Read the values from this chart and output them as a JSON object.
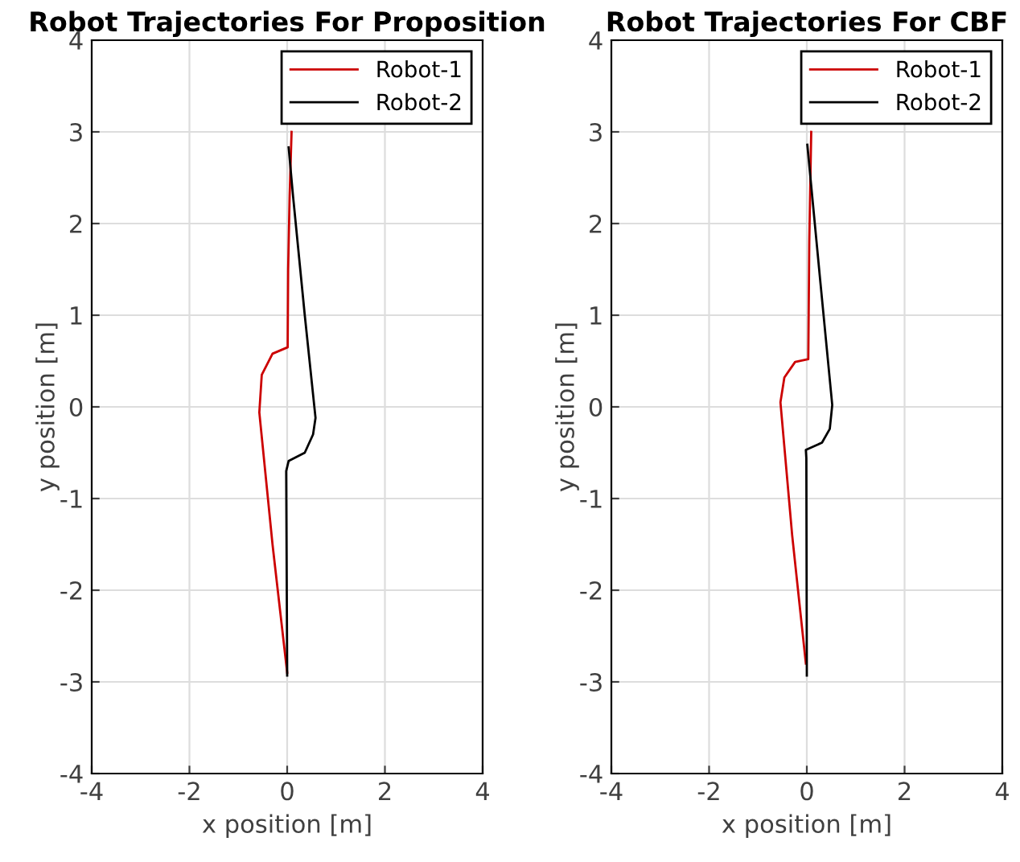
{
  "chart_data": [
    {
      "type": "line",
      "title": "Robot Trajectories For Proposition",
      "xlabel": "x position [m]",
      "ylabel": "y position [m]",
      "xlim": [
        -4,
        4
      ],
      "ylim": [
        -4,
        4
      ],
      "xticks": [
        -4,
        -2,
        0,
        2,
        4
      ],
      "yticks": [
        -4,
        -3,
        -2,
        -1,
        0,
        1,
        2,
        3,
        4
      ],
      "grid": true,
      "legend": "top right",
      "series": [
        {
          "name": "Robot-1",
          "color": "#cc0000",
          "x": [
            0.0,
            -0.3,
            -0.57,
            -0.52,
            -0.3,
            0.01,
            0.02,
            0.05,
            0.09
          ],
          "values": [
            -2.9,
            -1.5,
            -0.06,
            0.35,
            0.58,
            0.65,
            1.5,
            2.3,
            3.0
          ]
        },
        {
          "name": "Robot-2",
          "color": "#000000",
          "x": [
            0.03,
            0.12,
            0.36,
            0.58,
            0.53,
            0.36,
            0.03,
            -0.02,
            0.0
          ],
          "values": [
            2.83,
            2.3,
            1.0,
            -0.12,
            -0.3,
            -0.5,
            -0.59,
            -0.7,
            -2.93
          ]
        }
      ]
    },
    {
      "type": "line",
      "title": "Robot Trajectories For CBF",
      "xlabel": "x position [m]",
      "ylabel": "y position [m]",
      "xlim": [
        -4,
        4
      ],
      "ylim": [
        -4,
        4
      ],
      "xticks": [
        -4,
        -2,
        0,
        2,
        4
      ],
      "yticks": [
        -4,
        -3,
        -2,
        -1,
        0,
        1,
        2,
        3,
        4
      ],
      "grid": true,
      "legend": "top right",
      "series": [
        {
          "name": "Robot-1",
          "color": "#cc0000",
          "x": [
            -0.02,
            -0.3,
            -0.54,
            -0.46,
            -0.24,
            0.03,
            0.05,
            0.09
          ],
          "values": [
            -2.8,
            -1.4,
            0.05,
            0.32,
            0.49,
            0.52,
            1.8,
            3.0
          ]
        },
        {
          "name": "Robot-2",
          "color": "#000000",
          "x": [
            0.01,
            0.27,
            0.52,
            0.47,
            0.31,
            -0.02,
            -0.01,
            0.0
          ],
          "values": [
            2.86,
            1.4,
            0.02,
            -0.24,
            -0.39,
            -0.47,
            -0.56,
            -2.93
          ]
        }
      ]
    }
  ]
}
